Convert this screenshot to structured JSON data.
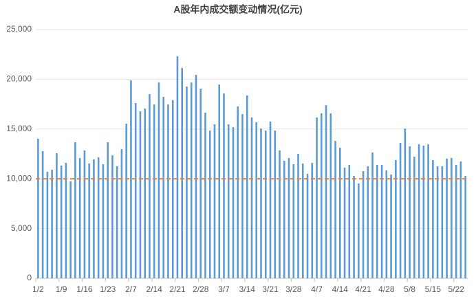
{
  "chart_data": {
    "type": "bar",
    "title": "A股年内成交额变动情况(亿元)",
    "categories": [
      "1/2",
      null,
      null,
      null,
      null,
      "1/9",
      null,
      null,
      null,
      null,
      "1/16",
      null,
      null,
      null,
      null,
      "1/23",
      null,
      null,
      null,
      null,
      "2/7",
      null,
      null,
      null,
      null,
      "2/14",
      null,
      null,
      null,
      null,
      "2/21",
      null,
      null,
      null,
      null,
      "2/28",
      null,
      null,
      null,
      null,
      "3/7",
      null,
      null,
      null,
      null,
      "3/14",
      null,
      null,
      null,
      null,
      "3/21",
      null,
      null,
      null,
      null,
      "3/28",
      null,
      null,
      null,
      null,
      "4/7",
      null,
      null,
      null,
      null,
      "4/14",
      null,
      null,
      null,
      null,
      "4/21",
      null,
      null,
      null,
      null,
      "4/28",
      null,
      null,
      null,
      null,
      "5/8",
      null,
      null,
      null,
      null,
      "5/15",
      null,
      null,
      null,
      null,
      "5/22",
      null,
      null
    ],
    "values": [
      14020,
      12780,
      10700,
      10910,
      12570,
      11330,
      11600,
      9740,
      13670,
      12090,
      12850,
      11530,
      11950,
      12150,
      11460,
      13670,
      12360,
      11260,
      12980,
      15540,
      19890,
      17610,
      16780,
      17060,
      18510,
      17470,
      19680,
      18230,
      17470,
      17890,
      22310,
      21130,
      19270,
      19680,
      20440,
      19060,
      16640,
      14850,
      15470,
      19470,
      18580,
      15470,
      15190,
      17270,
      16500,
      18370,
      16160,
      15680,
      15050,
      14850,
      15750,
      14850,
      12850,
      11810,
      12090,
      11460,
      12500,
      11530,
      10500,
      11600,
      16160,
      16570,
      17400,
      16570,
      13810,
      13120,
      11120,
      11400,
      10290,
      9530,
      10770,
      11260,
      12640,
      11400,
      11400,
      10840,
      10430,
      11880,
      13600,
      15050,
      13260,
      12220,
      13470,
      13330,
      13470,
      11880,
      11260,
      11260,
      12020,
      12090,
      11400,
      11740,
      10290
    ],
    "color": "#5b9bd5",
    "reference_line": {
      "value": 10000,
      "color": "#ed7d31"
    },
    "ylim": [
      0,
      25000
    ],
    "yticks": [
      0,
      {
        "value": 5000,
        "label": "5,000"
      },
      {
        "value": 10000,
        "label": "10,000"
      },
      {
        "value": 15000,
        "label": "15,000"
      },
      {
        "value": 20000,
        "label": "20,000"
      },
      {
        "value": 25000,
        "label": "25,000"
      }
    ],
    "grid": true
  }
}
